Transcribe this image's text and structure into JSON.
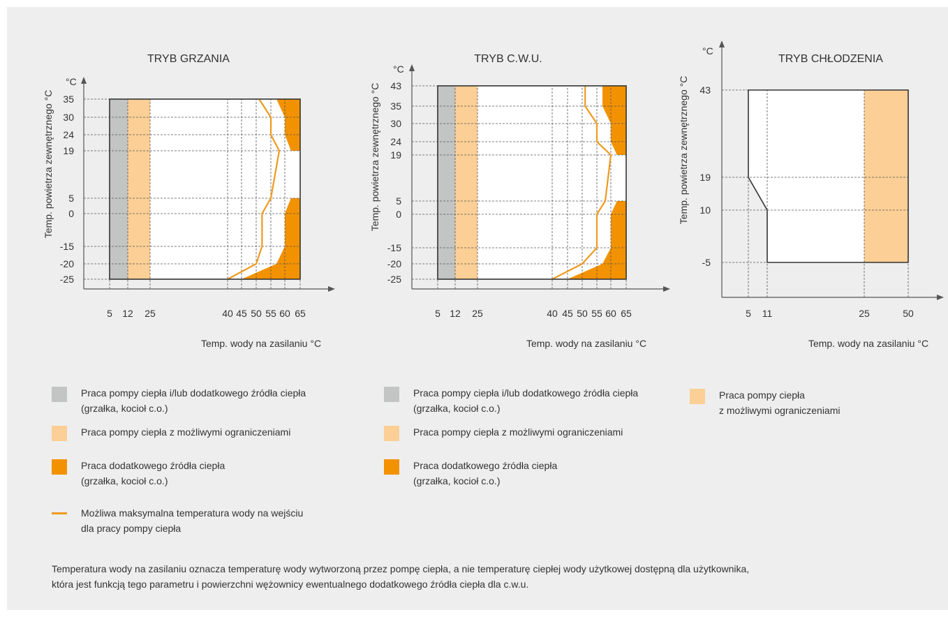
{
  "colors": {
    "grey": "#c3c5c4",
    "light_orange": "#fbcf95",
    "orange": "#f39200",
    "line": "#ef9a1e",
    "axis": "#555555",
    "outline": "#333333",
    "background": "#eeeeee"
  },
  "chart_data": [
    {
      "type": "area",
      "title": "TRYB GRZANIA",
      "xlabel": "Temp. wody na zasilaniu °C",
      "ylabel": "Temp. powietrza zewnętrznego °C",
      "yunit": "°C",
      "x_ticks": [
        "5",
        "12",
        "25",
        "40",
        "45",
        "50",
        "55",
        "60",
        "65"
      ],
      "y_ticks": [
        "-25",
        "-20",
        "-15",
        "0",
        "5",
        "19",
        "24",
        "30",
        "35"
      ],
      "xlim": [
        5,
        65
      ],
      "ylim": [
        -25,
        35
      ],
      "regions": [
        {
          "zone": "grey",
          "x_range": [
            5,
            12
          ],
          "y_range": [
            -25,
            35
          ]
        },
        {
          "zone": "light_orange",
          "x_range": [
            12,
            25
          ],
          "y_range": [
            -25,
            35
          ]
        },
        {
          "zone": "orange",
          "polygon": [
            [
              57,
              35
            ],
            [
              65,
              35
            ],
            [
              65,
              19
            ],
            [
              62,
              19
            ],
            [
              60,
              24
            ],
            [
              60,
              30
            ]
          ]
        },
        {
          "zone": "orange",
          "polygon": [
            [
              45,
              -25
            ],
            [
              65,
              -25
            ],
            [
              65,
              5
            ],
            [
              62,
              5
            ],
            [
              60,
              0
            ],
            [
              60,
              -15
            ],
            [
              57,
              -20
            ]
          ]
        }
      ],
      "max_temp_line": [
        [
          40,
          -25
        ],
        [
          50,
          -20
        ],
        [
          52,
          -15
        ],
        [
          52,
          0
        ],
        [
          55,
          5
        ],
        [
          58,
          19
        ],
        [
          55,
          24
        ],
        [
          55,
          30
        ],
        [
          51,
          35
        ]
      ]
    },
    {
      "type": "area",
      "title": "TRYB C.W.U.",
      "xlabel": "Temp. wody na zasilaniu °C",
      "ylabel": "Temp. powietrza zewnętrznego °C",
      "yunit": "°C",
      "x_ticks": [
        "5",
        "12",
        "25",
        "40",
        "45",
        "50",
        "55",
        "60",
        "65"
      ],
      "y_ticks": [
        "-25",
        "-20",
        "-15",
        "0",
        "5",
        "19",
        "24",
        "30",
        "35",
        "43"
      ],
      "xlim": [
        5,
        65
      ],
      "ylim": [
        -25,
        43
      ],
      "regions": [
        {
          "zone": "grey",
          "x_range": [
            5,
            12
          ],
          "y_range": [
            -25,
            43
          ]
        },
        {
          "zone": "light_orange",
          "x_range": [
            12,
            25
          ],
          "y_range": [
            -25,
            43
          ]
        },
        {
          "zone": "orange",
          "polygon": [
            [
              57,
              43
            ],
            [
              65,
              43
            ],
            [
              65,
              19
            ],
            [
              62,
              19
            ],
            [
              60,
              24
            ],
            [
              60,
              30
            ],
            [
              57,
              35
            ]
          ]
        },
        {
          "zone": "orange",
          "polygon": [
            [
              45,
              -25
            ],
            [
              65,
              -25
            ],
            [
              65,
              5
            ],
            [
              62,
              5
            ],
            [
              60,
              0
            ],
            [
              60,
              -15
            ],
            [
              57,
              -20
            ]
          ]
        }
      ],
      "max_temp_line": [
        [
          40,
          -25
        ],
        [
          50,
          -20
        ],
        [
          55,
          -15
        ],
        [
          55,
          0
        ],
        [
          58,
          5
        ],
        [
          60,
          19
        ],
        [
          55,
          24
        ],
        [
          55,
          30
        ],
        [
          51,
          35
        ],
        [
          51,
          43
        ]
      ]
    },
    {
      "type": "area",
      "title": "TRYB CHŁODZENIA",
      "xlabel": "Temp. wody na zasilaniu °C",
      "ylabel": "Temp. powietrza zewnętrznego °C",
      "yunit": "°C",
      "x_ticks": [
        "5",
        "11",
        "25",
        "50"
      ],
      "y_ticks": [
        "-5",
        "10",
        "19",
        "43"
      ],
      "xlim": [
        5,
        50
      ],
      "ylim": [
        -5,
        43
      ],
      "regions": [
        {
          "zone": "light_orange",
          "x_range": [
            25,
            50
          ],
          "y_range": [
            -5,
            43
          ]
        }
      ],
      "boundary": [
        [
          5,
          43
        ],
        [
          50,
          43
        ],
        [
          50,
          -5
        ],
        [
          11,
          -5
        ],
        [
          11,
          10
        ],
        [
          5,
          19
        ]
      ]
    }
  ],
  "legends": [
    {
      "items": [
        {
          "kind": "swatch",
          "color": "grey",
          "lines": [
            "Praca pompy ciepła i/lub dodatkowego źródła ciepła",
            "(grzałka, kocioł c.o.)"
          ]
        },
        {
          "kind": "swatch",
          "color": "light_orange",
          "lines": [
            "Praca pompy ciepła z możliwymi ograniczeniami"
          ]
        },
        {
          "kind": "swatch",
          "color": "orange",
          "lines": [
            "Praca dodatkowego źródła ciepła",
            "(grzałka, kocioł c.o.)"
          ]
        },
        {
          "kind": "line",
          "color": "line",
          "lines": [
            "Możliwa maksymalna temperatura wody na wejściu",
            "dla pracy pompy ciepła"
          ]
        }
      ]
    },
    {
      "items": [
        {
          "kind": "swatch",
          "color": "grey",
          "lines": [
            "Praca pompy ciepła i/lub dodatkowego źródła ciepła",
            "(grzałka, kocioł c.o.)"
          ]
        },
        {
          "kind": "swatch",
          "color": "light_orange",
          "lines": [
            "Praca pompy ciepła z możliwymi ograniczeniami"
          ]
        },
        {
          "kind": "swatch",
          "color": "orange",
          "lines": [
            "Praca dodatkowego źródła ciepła",
            "(grzałka, kocioł c.o.)"
          ]
        }
      ]
    },
    {
      "items": [
        {
          "kind": "swatch",
          "color": "light_orange",
          "lines": [
            "Praca pompy ciepła",
            "z możliwymi ograniczeniami"
          ]
        }
      ]
    }
  ],
  "footnote": [
    "Temperatura wody na zasilaniu oznacza temperaturę wody wytworzoną przez pompę ciepła, a nie temperaturę ciepłej wody użytkowej dostępną dla użytkownika,",
    "która jest funkcją tego parametru i powierzchni wężownicy ewentualnego dodatkowego źródła ciepła dla c.w.u."
  ]
}
